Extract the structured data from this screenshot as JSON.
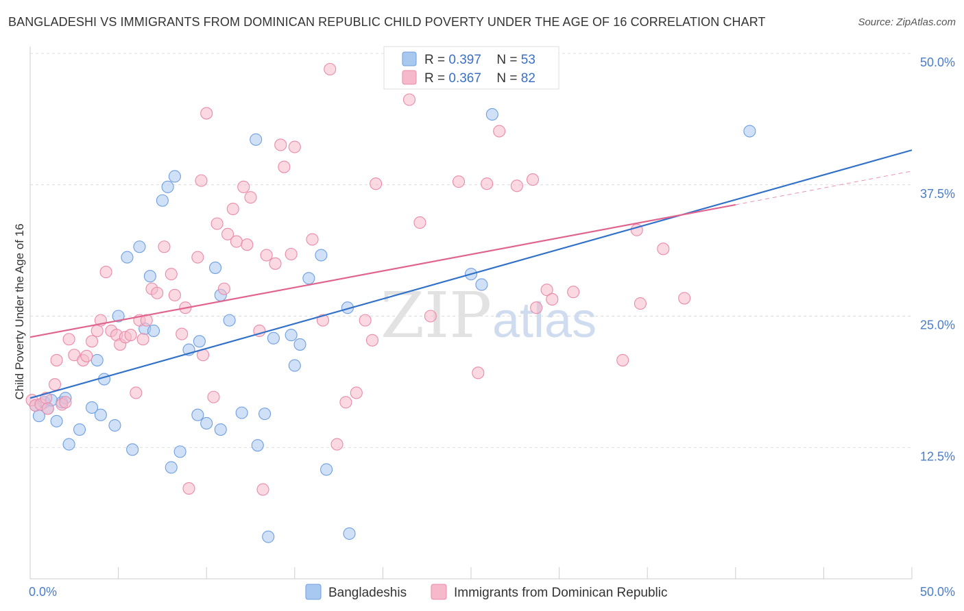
{
  "title": "BANGLADESHI VS IMMIGRANTS FROM DOMINICAN REPUBLIC CHILD POVERTY UNDER THE AGE OF 16 CORRELATION CHART",
  "source": "Source: ZipAtlas.com",
  "watermark": {
    "part1": "ZIP",
    "part2": "atlas"
  },
  "legend": {
    "rows": [
      {
        "r_label": "R = ",
        "r_value": "0.397",
        "n_label": "N = ",
        "n_value": "53",
        "color": "#a9c8f0"
      },
      {
        "r_label": "R = ",
        "r_value": "0.367",
        "n_label": "N = ",
        "n_value": "82",
        "color": "#f6b9cb"
      }
    ]
  },
  "chart_data": {
    "type": "scatter",
    "xlabel": "",
    "ylabel": "Child Poverty Under the Age of 16",
    "xlim": [
      0,
      50
    ],
    "ylim": [
      0,
      50
    ],
    "x_tick_labels": [
      {
        "value": 0,
        "label": "0.0%"
      },
      {
        "value": 50,
        "label": "50.0%"
      }
    ],
    "y_tick_labels": [
      {
        "value": 12.5,
        "label": "12.5%"
      },
      {
        "value": 25,
        "label": "25.0%"
      },
      {
        "value": 37.5,
        "label": "37.5%"
      },
      {
        "value": 50,
        "label": "50.0%"
      }
    ],
    "grid": "horizontal dashed",
    "legend_position": "top-center",
    "series": [
      {
        "name": "Bangladeshis",
        "color": "#a9c8f0",
        "edge_color": "#6d9ee0",
        "line_color": "#3070c8",
        "trend": {
          "x": [
            0,
            50
          ],
          "y": [
            17.2,
            40.8
          ]
        },
        "points": [
          [
            0.3,
            16.5
          ],
          [
            0.5,
            15.5
          ],
          [
            0.8,
            16.8
          ],
          [
            1.0,
            16.2
          ],
          [
            1.5,
            15.0
          ],
          [
            1.8,
            16.8
          ],
          [
            2.0,
            17.2
          ],
          [
            2.2,
            12.8
          ],
          [
            2.8,
            14.2
          ],
          [
            3.5,
            16.3
          ],
          [
            3.8,
            20.8
          ],
          [
            4.0,
            15.6
          ],
          [
            4.2,
            19.0
          ],
          [
            4.8,
            14.6
          ],
          [
            5.0,
            25.0
          ],
          [
            5.5,
            30.6
          ],
          [
            5.8,
            12.3
          ],
          [
            6.2,
            31.6
          ],
          [
            6.5,
            23.8
          ],
          [
            6.8,
            28.8
          ],
          [
            7.0,
            23.6
          ],
          [
            7.5,
            36.0
          ],
          [
            7.8,
            37.3
          ],
          [
            8.0,
            10.6
          ],
          [
            8.2,
            38.3
          ],
          [
            8.5,
            12.1
          ],
          [
            9.0,
            21.8
          ],
          [
            9.5,
            15.6
          ],
          [
            9.6,
            22.6
          ],
          [
            10.0,
            14.8
          ],
          [
            10.5,
            29.6
          ],
          [
            10.8,
            27.0
          ],
          [
            10.8,
            14.2
          ],
          [
            11.3,
            24.6
          ],
          [
            12.0,
            15.8
          ],
          [
            12.8,
            41.8
          ],
          [
            12.9,
            12.7
          ],
          [
            13.3,
            15.7
          ],
          [
            13.5,
            4.0
          ],
          [
            13.8,
            22.9
          ],
          [
            14.8,
            23.2
          ],
          [
            15.0,
            20.3
          ],
          [
            15.3,
            22.3
          ],
          [
            15.8,
            28.6
          ],
          [
            16.5,
            30.8
          ],
          [
            16.8,
            10.4
          ],
          [
            18.0,
            25.8
          ],
          [
            18.1,
            4.3
          ],
          [
            25.0,
            29.0
          ],
          [
            25.6,
            28.0
          ],
          [
            26.2,
            44.2
          ],
          [
            40.8,
            42.6
          ],
          [
            1.2,
            17.0
          ]
        ]
      },
      {
        "name": "Immigrants from Dominican Republic",
        "color": "#f6b9cb",
        "edge_color": "#e98aa8",
        "line_color": "#e0648e",
        "trend": {
          "x": [
            0,
            40
          ],
          "y": [
            23.0,
            35.6
          ]
        },
        "trend_ext": {
          "x": [
            40,
            50
          ],
          "y": [
            35.6,
            38.8
          ]
        },
        "points": [
          [
            0.1,
            17.0
          ],
          [
            0.3,
            16.5
          ],
          [
            0.6,
            16.6
          ],
          [
            0.9,
            17.2
          ],
          [
            1.4,
            18.5
          ],
          [
            1.8,
            16.6
          ],
          [
            1.5,
            20.8
          ],
          [
            2.2,
            22.8
          ],
          [
            2.5,
            21.3
          ],
          [
            3.0,
            20.8
          ],
          [
            3.2,
            21.2
          ],
          [
            3.5,
            22.6
          ],
          [
            3.8,
            23.6
          ],
          [
            4.0,
            24.6
          ],
          [
            4.3,
            29.2
          ],
          [
            4.6,
            23.6
          ],
          [
            4.9,
            23.2
          ],
          [
            5.1,
            22.3
          ],
          [
            5.4,
            23.0
          ],
          [
            5.7,
            23.2
          ],
          [
            6.0,
            17.7
          ],
          [
            6.2,
            24.6
          ],
          [
            6.4,
            22.8
          ],
          [
            6.6,
            24.6
          ],
          [
            6.9,
            27.6
          ],
          [
            7.2,
            27.2
          ],
          [
            7.6,
            31.6
          ],
          [
            8.0,
            29.0
          ],
          [
            8.2,
            27.0
          ],
          [
            8.6,
            23.3
          ],
          [
            8.8,
            25.8
          ],
          [
            9.0,
            8.6
          ],
          [
            9.5,
            30.6
          ],
          [
            9.7,
            37.9
          ],
          [
            9.8,
            21.3
          ],
          [
            10.0,
            44.3
          ],
          [
            10.4,
            17.3
          ],
          [
            10.6,
            33.8
          ],
          [
            11.0,
            27.6
          ],
          [
            11.2,
            32.8
          ],
          [
            11.5,
            35.2
          ],
          [
            11.7,
            32.1
          ],
          [
            12.1,
            37.3
          ],
          [
            12.3,
            31.8
          ],
          [
            12.5,
            36.3
          ],
          [
            13.0,
            23.6
          ],
          [
            13.2,
            8.5
          ],
          [
            13.4,
            30.8
          ],
          [
            13.9,
            30.0
          ],
          [
            14.2,
            41.3
          ],
          [
            14.4,
            39.2
          ],
          [
            14.8,
            30.9
          ],
          [
            15.0,
            41.1
          ],
          [
            16.0,
            32.3
          ],
          [
            16.6,
            24.6
          ],
          [
            17.0,
            48.5
          ],
          [
            17.4,
            12.8
          ],
          [
            17.9,
            16.8
          ],
          [
            18.5,
            17.7
          ],
          [
            19.0,
            24.6
          ],
          [
            19.4,
            22.7
          ],
          [
            19.6,
            37.6
          ],
          [
            21.5,
            45.6
          ],
          [
            22.1,
            33.9
          ],
          [
            22.7,
            25.0
          ],
          [
            24.3,
            37.8
          ],
          [
            25.4,
            19.6
          ],
          [
            25.9,
            37.6
          ],
          [
            26.6,
            42.6
          ],
          [
            27.6,
            37.4
          ],
          [
            28.5,
            38.0
          ],
          [
            28.7,
            25.8
          ],
          [
            29.3,
            27.5
          ],
          [
            29.6,
            26.6
          ],
          [
            30.8,
            27.3
          ],
          [
            33.6,
            20.8
          ],
          [
            34.4,
            33.2
          ],
          [
            34.6,
            26.2
          ],
          [
            35.9,
            31.4
          ],
          [
            37.1,
            26.7
          ],
          [
            1.0,
            16.2
          ],
          [
            2.0,
            16.8
          ]
        ]
      }
    ]
  }
}
